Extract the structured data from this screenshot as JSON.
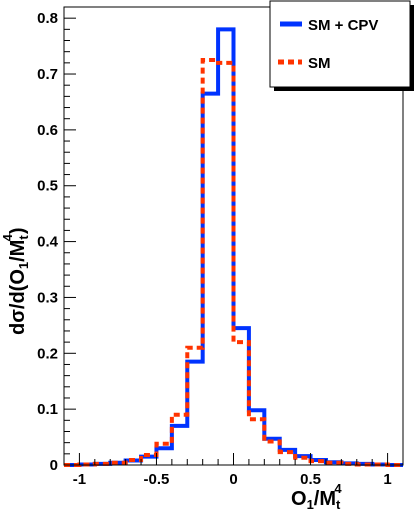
{
  "chart_data": {
    "type": "histogram",
    "xlim": [
      -1.1,
      1.1
    ],
    "ylim": [
      0,
      0.82
    ],
    "x_ticks": [
      -1,
      -0.5,
      0,
      0.5,
      1
    ],
    "x_tick_labels": [
      "-1",
      "-0.5",
      "0",
      "0.5",
      "1"
    ],
    "y_ticks": [
      0,
      0.1,
      0.2,
      0.3,
      0.4,
      0.5,
      0.6,
      0.7,
      0.8
    ],
    "y_tick_labels": [
      "0",
      "0.1",
      "0.2",
      "0.3",
      "0.4",
      "0.5",
      "0.6",
      "0.7",
      "0.8"
    ],
    "xlabel": {
      "main": "O",
      "sub": "1",
      "mid": "/M",
      "sub2": "t",
      "sup2": "4"
    },
    "ylabel": {
      "main": "dσ/d(O",
      "sub": "1",
      "mid": "/M",
      "sub2": "t",
      "sup2": "4",
      "end": ")"
    },
    "legend_position": "top-right",
    "bin_edges": [
      -1.1,
      -1.0,
      -0.9,
      -0.8,
      -0.7,
      -0.6,
      -0.5,
      -0.4,
      -0.3,
      -0.2,
      -0.1,
      0.0,
      0.1,
      0.2,
      0.3,
      0.4,
      0.5,
      0.6,
      0.7,
      0.8,
      0.9,
      1.0,
      1.1
    ],
    "series": [
      {
        "name": "SM + CPV",
        "color": "#0033ff",
        "style": "solid",
        "values": [
          0.0,
          0.001,
          0.002,
          0.004,
          0.008,
          0.015,
          0.03,
          0.07,
          0.185,
          0.665,
          0.78,
          0.245,
          0.098,
          0.047,
          0.027,
          0.016,
          0.009,
          0.005,
          0.003,
          0.002,
          0.001,
          0.0
        ]
      },
      {
        "name": "SM",
        "color": "#ff3300",
        "style": "dashed",
        "values": [
          0.0,
          0.001,
          0.002,
          0.004,
          0.009,
          0.018,
          0.038,
          0.09,
          0.21,
          0.725,
          0.72,
          0.22,
          0.082,
          0.042,
          0.023,
          0.013,
          0.007,
          0.004,
          0.002,
          0.001,
          0.001,
          0.0
        ]
      }
    ]
  }
}
